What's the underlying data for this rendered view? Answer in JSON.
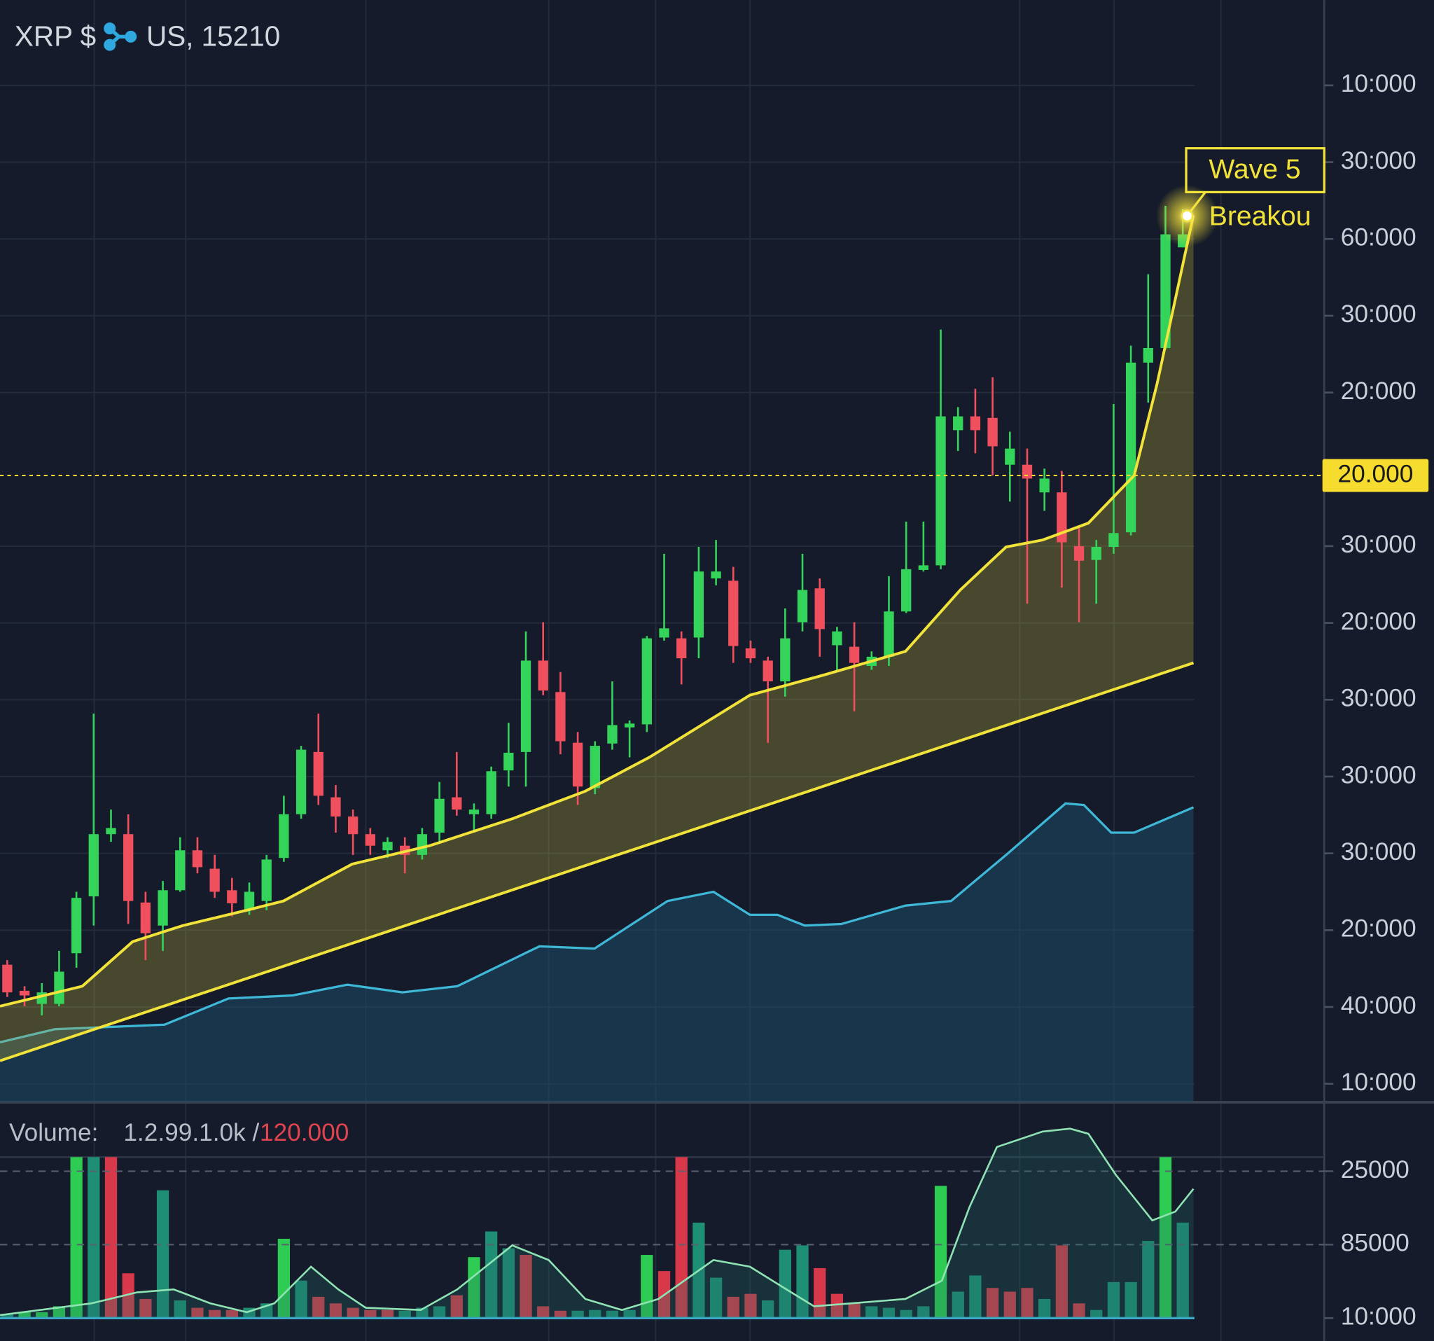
{
  "header": {
    "symbol": "XRP $",
    "quote": "US, 15210"
  },
  "chart_data": [
    {
      "type": "candlestick",
      "xlim": [
        -0.42,
        68.62
      ],
      "ylim": [
        -0.24,
        14.11
      ],
      "grid": true,
      "yticks": [
        {
          "value": 13,
          "label": "10:000"
        },
        {
          "value": 12,
          "label": "30:000"
        },
        {
          "value": 11,
          "label": "60:000"
        },
        {
          "value": 10,
          "label": "30:000"
        },
        {
          "value": 9,
          "label": "20:000"
        },
        {
          "value": 7,
          "label": "30:000"
        },
        {
          "value": 6,
          "label": "20:000"
        },
        {
          "value": 5,
          "label": "30:000"
        },
        {
          "value": 4,
          "label": "30:000"
        },
        {
          "value": 3,
          "label": "30:000"
        },
        {
          "value": 2,
          "label": "20:000"
        },
        {
          "value": 1,
          "label": "40:000"
        },
        {
          "value": 0,
          "label": "10:000"
        }
      ],
      "up_color": "#34d35a",
      "down_color": "#f0505e",
      "open": [
        1.55,
        1.21,
        1.04,
        1.04,
        1.7,
        2.44,
        3.25,
        3.25,
        2.36,
        2.06,
        2.52,
        3.04,
        2.8,
        2.52,
        2.26,
        2.38,
        2.94,
        3.51,
        4.32,
        3.73,
        3.48,
        3.25,
        3.04,
        3.1,
        2.98,
        3.27,
        3.73,
        3.51,
        3.51,
        4.08,
        4.32,
        5.51,
        5.1,
        4.44,
        3.85,
        4.43,
        4.64,
        4.68,
        5.81,
        5.8,
        5.81,
        6.58,
        6.55,
        5.67,
        5.51,
        5.24,
        6.01,
        6.45,
        5.71,
        5.69,
        5.44,
        5.56,
        6.15,
        6.69,
        6.75,
        8.51,
        8.69,
        8.67,
        8.06,
        8.06,
        7.7,
        7.7,
        7.0,
        6.82,
        6.99,
        7.18,
        9.39,
        9.58,
        10.89
      ],
      "high": [
        1.61,
        1.27,
        1.31,
        1.73,
        2.5,
        4.82,
        3.57,
        3.51,
        2.5,
        2.64,
        3.21,
        3.21,
        2.98,
        2.68,
        2.62,
        2.98,
        3.75,
        4.4,
        4.82,
        3.89,
        3.57,
        3.33,
        3.21,
        3.21,
        3.33,
        3.93,
        4.32,
        3.65,
        4.13,
        4.7,
        5.89,
        6.01,
        5.36,
        4.58,
        4.46,
        5.24,
        4.73,
        5.83,
        6.9,
        5.89,
        6.99,
        7.08,
        6.73,
        5.77,
        5.56,
        6.19,
        6.9,
        6.58,
        5.95,
        6.01,
        5.63,
        6.61,
        7.32,
        7.32,
        9.82,
        8.81,
        9.05,
        9.2,
        8.49,
        8.27,
        8.01,
        7.98,
        7.26,
        7.08,
        8.85,
        9.61,
        10.54,
        11.43,
        11.39
      ],
      "low": [
        1.13,
        1.01,
        0.89,
        1.01,
        1.51,
        2.06,
        3.15,
        2.08,
        1.61,
        1.73,
        2.5,
        2.74,
        2.42,
        2.18,
        2.2,
        2.26,
        2.89,
        3.45,
        3.63,
        3.27,
        2.98,
        2.98,
        2.94,
        2.74,
        2.92,
        3.15,
        3.49,
        3.27,
        3.45,
        3.87,
        3.87,
        5.06,
        4.29,
        3.63,
        3.77,
        4.35,
        4.25,
        4.58,
        5.77,
        5.2,
        5.54,
        6.49,
        5.48,
        5.48,
        4.44,
        5.04,
        5.89,
        5.56,
        5.36,
        4.85,
        5.39,
        5.44,
        6.13,
        6.67,
        6.7,
        8.24,
        8.21,
        7.92,
        7.58,
        6.25,
        7.46,
        6.46,
        6.01,
        6.25,
        6.9,
        7.14,
        8.87,
        9.56,
        10.89
      ],
      "close": [
        1.19,
        1.15,
        1.19,
        1.46,
        2.42,
        3.25,
        3.33,
        2.38,
        1.96,
        2.52,
        3.04,
        2.82,
        2.5,
        2.35,
        2.5,
        2.92,
        3.51,
        4.35,
        3.75,
        3.48,
        3.25,
        3.1,
        3.15,
        2.98,
        3.25,
        3.71,
        3.57,
        3.57,
        4.07,
        4.31,
        5.51,
        5.12,
        4.46,
        3.87,
        4.4,
        4.67,
        4.69,
        5.8,
        5.93,
        5.54,
        6.67,
        6.67,
        5.7,
        5.54,
        5.24,
        5.8,
        6.43,
        5.92,
        5.89,
        5.48,
        5.56,
        6.15,
        6.7,
        6.75,
        8.69,
        8.69,
        8.51,
        8.3,
        8.27,
        7.88,
        7.88,
        7.05,
        6.81,
        6.99,
        7.17,
        9.39,
        9.58,
        11.06,
        11.06
      ],
      "moving_average": {
        "color": "#f2e33a",
        "x": [
          -0.42,
          4.34,
          7.25,
          10.16,
          13.86,
          15.98,
          19.95,
          24.44,
          29.21,
          33.44,
          37.14,
          42.96,
          47.2,
          51.96,
          55.13,
          57.78,
          59.89,
          62.54,
          65.19,
          66.51,
          68.62
        ],
        "values": [
          1.01,
          1.27,
          1.85,
          2.06,
          2.26,
          2.38,
          2.86,
          3.1,
          3.45,
          3.81,
          4.25,
          5.06,
          5.32,
          5.63,
          6.43,
          6.99,
          7.08,
          7.3,
          7.92,
          9.11,
          11.31
        ]
      },
      "trendline": {
        "color": "#f2e33a",
        "x": [
          -0.42,
          68.62
        ],
        "values": [
          0.3,
          5.48
        ]
      },
      "blue_line": {
        "color": "#3fb8d8",
        "x": [
          -0.42,
          2.75,
          9.1,
          12.8,
          16.51,
          19.68,
          22.86,
          26.03,
          30.79,
          33.97,
          38.2,
          40.85,
          42.96,
          44.55,
          46.14,
          48.25,
          51.96,
          54.6,
          57.78,
          61.22,
          62.28,
          63.86,
          65.19,
          68.62
        ],
        "values": [
          0.54,
          0.71,
          0.77,
          1.11,
          1.15,
          1.29,
          1.19,
          1.27,
          1.79,
          1.76,
          2.38,
          2.5,
          2.2,
          2.2,
          2.06,
          2.08,
          2.32,
          2.38,
          2.98,
          3.65,
          3.63,
          3.27,
          3.27,
          3.6
        ]
      },
      "marker_level": {
        "value": 7.92,
        "label": "20.000",
        "color": "#f5dc2e"
      },
      "annotations": [
        {
          "text": "Wave 5",
          "x": 68.25,
          "value": 11.3
        },
        {
          "text": "Breakou"
        }
      ]
    },
    {
      "type": "bar",
      "label": "Volume:",
      "readout": "1.2.99.1.0k /",
      "readout_max": "120.000",
      "xlim": [
        -0.42,
        68.62
      ],
      "ylim": [
        0,
        2.89
      ],
      "yticks": [
        {
          "value": 2,
          "label": "25000"
        },
        {
          "value": 1,
          "label": "85000"
        },
        {
          "value": 0,
          "label": "10:000"
        }
      ],
      "values": [
        0.05,
        0.08,
        0.08,
        0.16,
        2.2,
        2.2,
        2.2,
        0.61,
        0.26,
        1.74,
        0.24,
        0.14,
        0.11,
        0.11,
        0.14,
        0.2,
        1.08,
        0.51,
        0.29,
        0.2,
        0.14,
        0.11,
        0.11,
        0.1,
        0.14,
        0.16,
        0.31,
        0.83,
        1.18,
        0.95,
        0.86,
        0.16,
        0.1,
        0.1,
        0.11,
        0.1,
        0.11,
        0.86,
        0.64,
        2.2,
        1.3,
        0.55,
        0.29,
        0.33,
        0.24,
        0.93,
        0.99,
        0.68,
        0.33,
        0.2,
        0.16,
        0.14,
        0.11,
        0.16,
        1.8,
        0.36,
        0.58,
        0.41,
        0.36,
        0.41,
        0.26,
        0.99,
        0.2,
        0.11,
        0.49,
        0.49,
        1.05,
        2.2,
        1.3
      ],
      "colors": [
        "#1e8e74",
        "#2ecc52",
        "#2ecc52",
        "#2ecc52",
        "#2ecc52",
        "#1e8e74",
        "#d8394a",
        "#d8394a",
        "#d8394a",
        "#1e8e74",
        "#1e8e74",
        "#d8394a",
        "#d8394a",
        "#d8394a",
        "#1e8e74",
        "#1e8e74",
        "#2ecc52",
        "#1e8e74",
        "#d8394a",
        "#d8394a",
        "#d8394a",
        "#d8394a",
        "#d8394a",
        "#1e8e74",
        "#1e8e74",
        "#1e8e74",
        "#d8394a",
        "#2ecc52",
        "#1e8e74",
        "#1e8e74",
        "#d8394a",
        "#d8394a",
        "#d8394a",
        "#1e8e74",
        "#1e8e74",
        "#1e8e74",
        "#1e8e74",
        "#2ecc52",
        "#d8394a",
        "#d8394a",
        "#1e8e74",
        "#1e8e74",
        "#d8394a",
        "#d8394a",
        "#1e8e74",
        "#1e8e74",
        "#1e8e74",
        "#d8394a",
        "#d8394a",
        "#d8394a",
        "#1e8e74",
        "#1e8e74",
        "#1e8e74",
        "#1e8e74",
        "#2ecc52",
        "#1e8e74",
        "#1e8e74",
        "#d8394a",
        "#d8394a",
        "#d8394a",
        "#1e8e74",
        "#d8394a",
        "#d8394a",
        "#1e8e74",
        "#1e8e74",
        "#1e8e74",
        "#1e8e74",
        "#2ecc52",
        "#1e8e74"
      ],
      "line": {
        "color": "#8fe3b4",
        "x": [
          -0.42,
          4.87,
          7.51,
          9.63,
          11.75,
          13.86,
          15.45,
          17.57,
          19.15,
          20.74,
          23.92,
          26.03,
          29.21,
          31.32,
          33.44,
          35.56,
          37.67,
          40.85,
          42.96,
          45.08,
          46.67,
          48.78,
          51.96,
          54.07,
          55.66,
          57.25,
          59.89,
          61.48,
          62.54,
          64.13,
          66.24,
          67.57,
          68.62
        ],
        "values": [
          0.04,
          0.2,
          0.35,
          0.39,
          0.2,
          0.08,
          0.2,
          0.7,
          0.39,
          0.14,
          0.11,
          0.39,
          0.99,
          0.79,
          0.26,
          0.11,
          0.26,
          0.79,
          0.7,
          0.39,
          0.16,
          0.2,
          0.26,
          0.51,
          1.51,
          2.33,
          2.54,
          2.58,
          2.51,
          1.95,
          1.33,
          1.45,
          1.76
        ]
      }
    }
  ]
}
